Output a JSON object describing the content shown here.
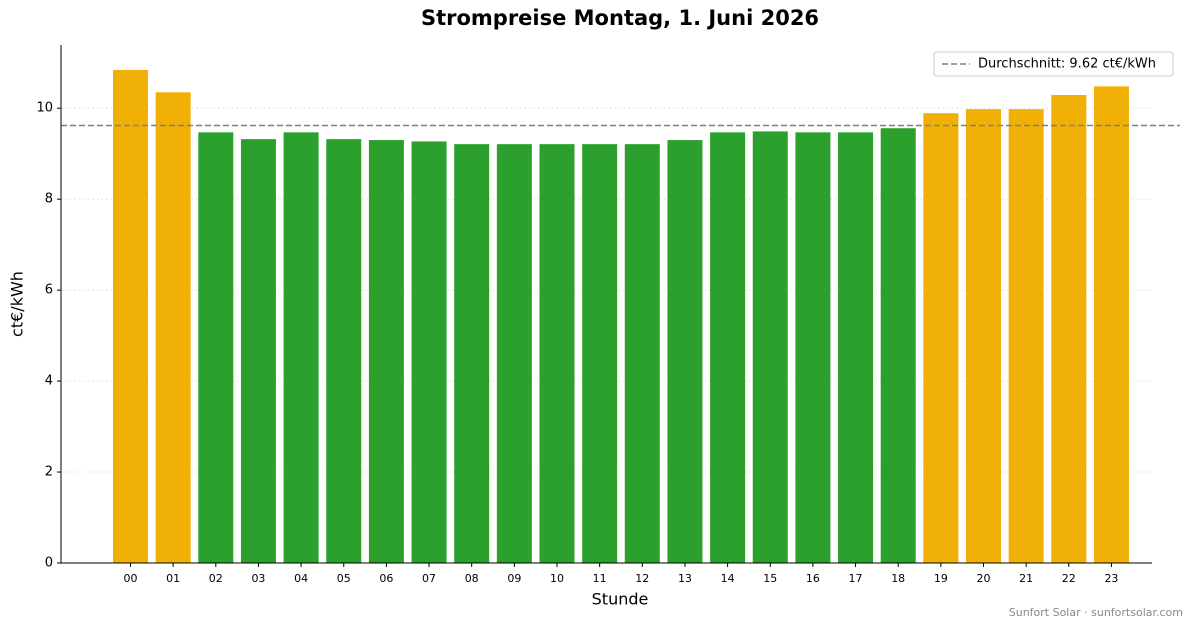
{
  "chart_data": {
    "type": "bar",
    "title": "Strompreise Montag, 1. Juni 2026",
    "x_label": "Stunde",
    "y_label": "ct€/kWh",
    "categories": [
      "00",
      "01",
      "02",
      "03",
      "04",
      "05",
      "06",
      "07",
      "08",
      "09",
      "10",
      "11",
      "12",
      "13",
      "14",
      "15",
      "16",
      "17",
      "18",
      "19",
      "20",
      "21",
      "22",
      "23"
    ],
    "values": [
      10.84,
      10.35,
      9.47,
      9.32,
      9.47,
      9.32,
      9.3,
      9.27,
      9.21,
      9.21,
      9.21,
      9.21,
      9.21,
      9.3,
      9.47,
      9.49,
      9.47,
      9.47,
      9.56,
      9.89,
      9.98,
      9.98,
      10.29,
      10.48
    ],
    "colors": [
      "#f0b005",
      "#f0b005",
      "#2ca02c",
      "#2ca02c",
      "#2ca02c",
      "#2ca02c",
      "#2ca02c",
      "#2ca02c",
      "#2ca02c",
      "#2ca02c",
      "#2ca02c",
      "#2ca02c",
      "#2ca02c",
      "#2ca02c",
      "#2ca02c",
      "#2ca02c",
      "#2ca02c",
      "#2ca02c",
      "#2ca02c",
      "#f0b005",
      "#f0b005",
      "#f0b005",
      "#f0b005",
      "#f0b005"
    ],
    "average": {
      "value": 9.62,
      "label": "Durchschnitt: 9.62 ct€/kWh",
      "color": "#808080"
    },
    "ylim": [
      0,
      11.39
    ],
    "yticks": [
      0,
      2,
      4,
      6,
      8,
      10
    ],
    "grid": true,
    "legend": "upper right",
    "footer": "Sunfort Solar · sunfortsolar.com"
  }
}
